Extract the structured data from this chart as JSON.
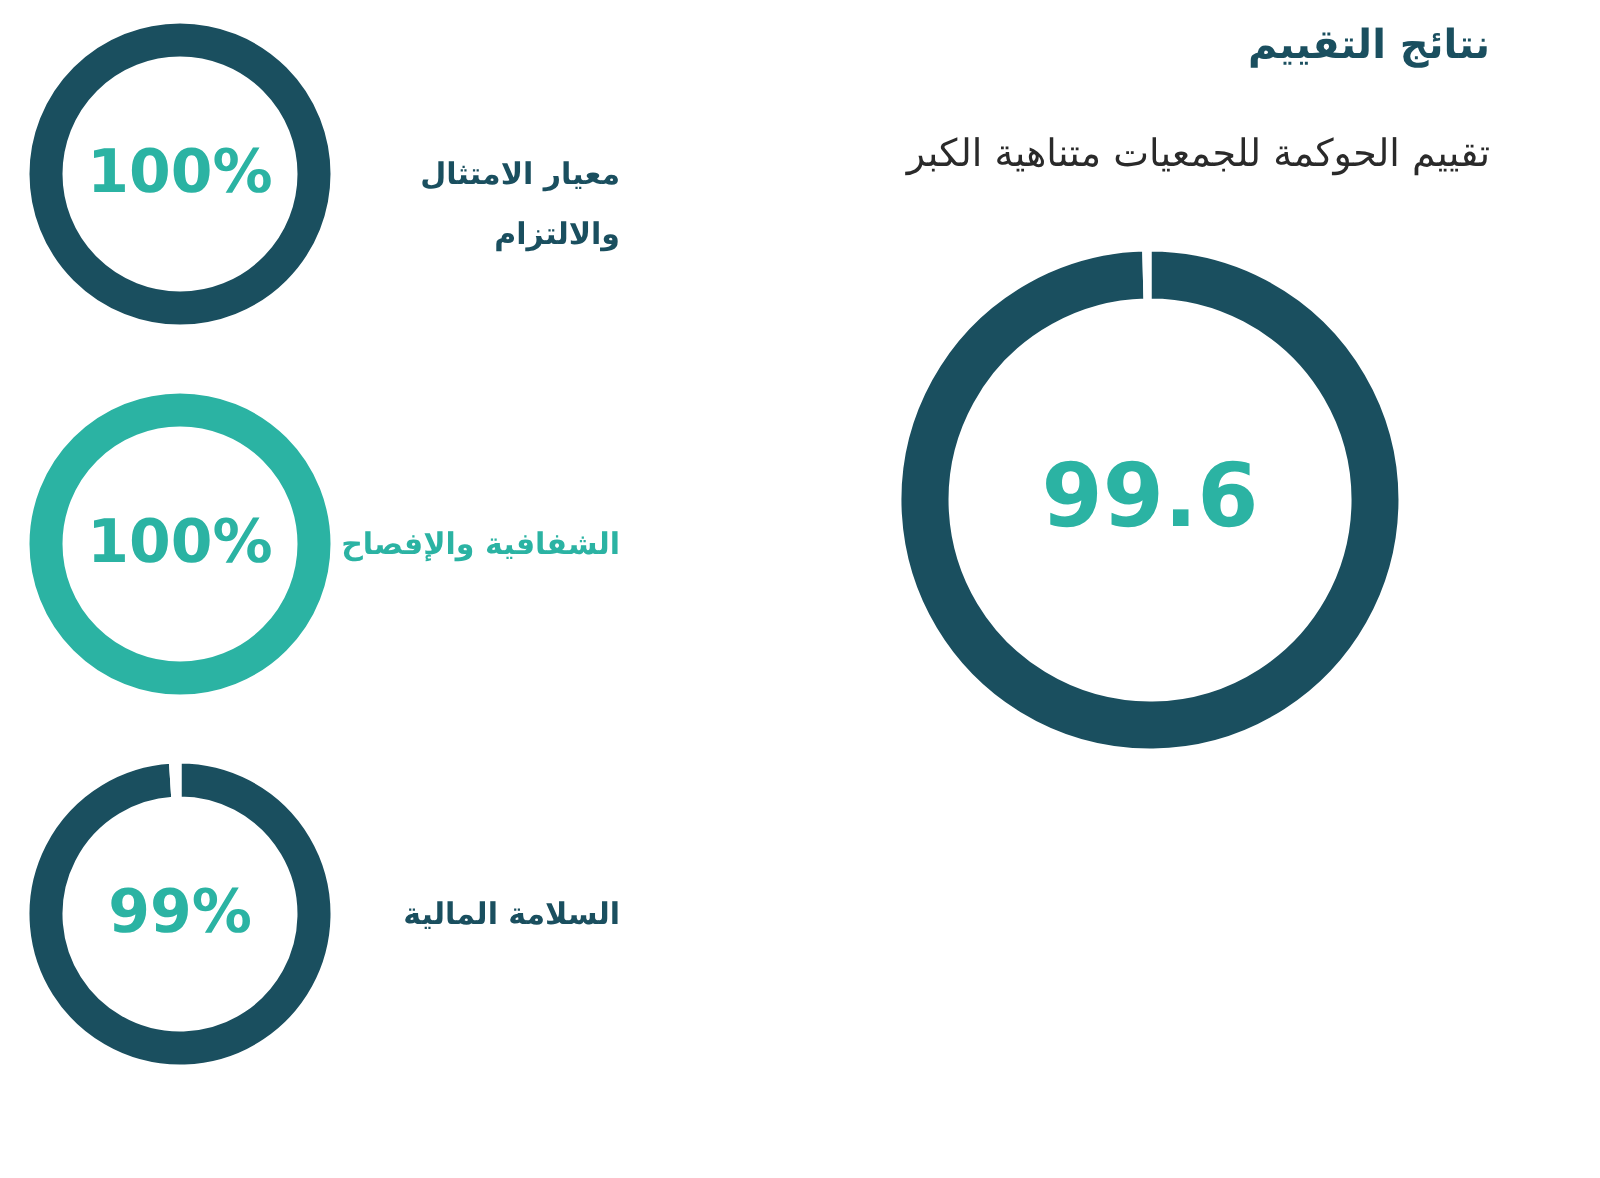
{
  "chart_data": [
    {
      "type": "donut",
      "title": "معيار الامتثال والالتزام",
      "categories": [
        null
      ],
      "values": [
        100
      ],
      "colors": [
        "#1a4f5f"
      ],
      "value_labels": [
        "100%"
      ]
    },
    {
      "type": "donut",
      "title": "الشفافية والإفصاح",
      "categories": [
        null
      ],
      "values": [
        100
      ],
      "colors": [
        "#2bb3a3"
      ],
      "value_labels": [
        "100%"
      ]
    },
    {
      "type": "donut",
      "title": "السلامة المالية",
      "categories": [
        null,
        null
      ],
      "values": [
        99,
        1
      ],
      "colors": [
        "#1a4f5f",
        "#ffffff"
      ],
      "value_labels": [
        "99%",
        null
      ]
    },
    {
      "type": "donut",
      "title": "نتائج التقييم",
      "subtitle": "تقييم الحوكمة للجمعيات متناهية الكبر",
      "categories": [
        null,
        null
      ],
      "values": [
        99.6,
        0.4
      ],
      "colors": [
        "#1a4f5f",
        "#ffffff"
      ],
      "value_labels": [
        "99.6",
        null
      ]
    }
  ]
}
